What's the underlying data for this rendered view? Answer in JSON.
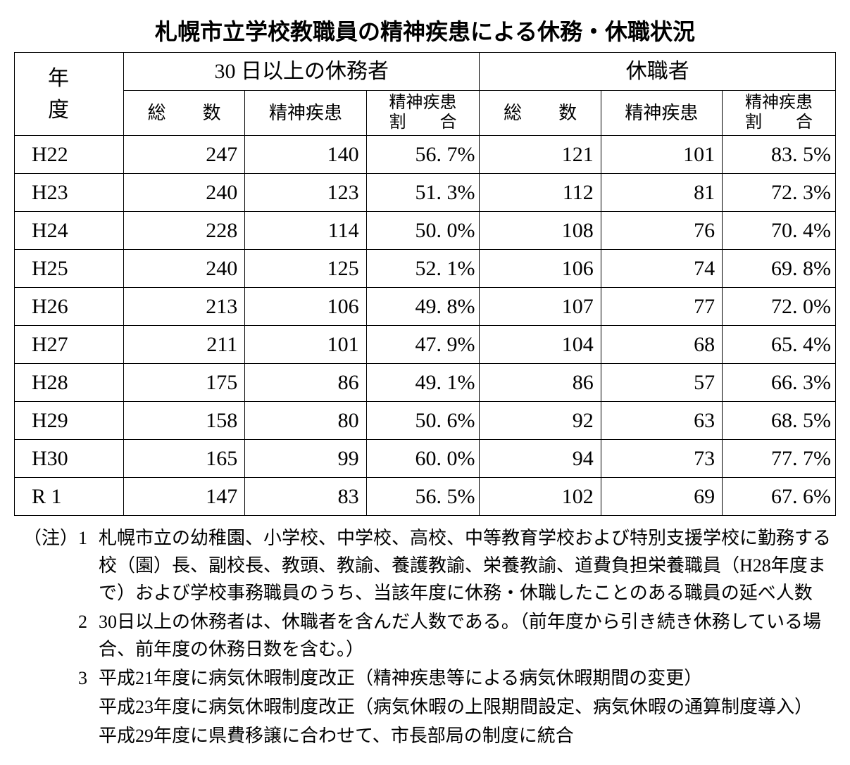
{
  "title": "札幌市立学校教職員の精神疾患による休務・休職状況",
  "headers": {
    "year": "年　度",
    "group1": "30 日以上の休務者",
    "group2": "休職者",
    "sub_total": "総　　数",
    "sub_mental": "精神疾患",
    "sub_ratio_line1": "精神疾患",
    "sub_ratio_line2": "割　　合"
  },
  "rows": [
    {
      "year": "H22",
      "t1": "247",
      "m1": "140",
      "p1": "56. 7%",
      "t2": "121",
      "m2": "101",
      "p2": "83. 5%"
    },
    {
      "year": "H23",
      "t1": "240",
      "m1": "123",
      "p1": "51. 3%",
      "t2": "112",
      "m2": "81",
      "p2": "72. 3%"
    },
    {
      "year": "H24",
      "t1": "228",
      "m1": "114",
      "p1": "50. 0%",
      "t2": "108",
      "m2": "76",
      "p2": "70. 4%"
    },
    {
      "year": "H25",
      "t1": "240",
      "m1": "125",
      "p1": "52. 1%",
      "t2": "106",
      "m2": "74",
      "p2": "69. 8%"
    },
    {
      "year": "H26",
      "t1": "213",
      "m1": "106",
      "p1": "49. 8%",
      "t2": "107",
      "m2": "77",
      "p2": "72. 0%"
    },
    {
      "year": "H27",
      "t1": "211",
      "m1": "101",
      "p1": "47. 9%",
      "t2": "104",
      "m2": "68",
      "p2": "65. 4%"
    },
    {
      "year": "H28",
      "t1": "175",
      "m1": "86",
      "p1": "49. 1%",
      "t2": "86",
      "m2": "57",
      "p2": "66. 3%"
    },
    {
      "year": "H29",
      "t1": "158",
      "m1": "80",
      "p1": "50. 6%",
      "t2": "92",
      "m2": "63",
      "p2": "68. 5%"
    },
    {
      "year": "H30",
      "t1": "165",
      "m1": "99",
      "p1": "60. 0%",
      "t2": "94",
      "m2": "73",
      "p2": "77. 7%"
    },
    {
      "year": "R 1",
      "t1": "147",
      "m1": "83",
      "p1": "56. 5%",
      "t2": "102",
      "m2": "69",
      "p2": "67. 6%"
    }
  ],
  "notes": [
    {
      "label": "（注）1",
      "text": "札幌市立の幼稚園、小学校、中学校、高校、中等教育学校および特別支援学校に勤務する校（園）長、副校長、教頭、教諭、養護教諭、栄養教諭、道費負担栄養職員（H28年度まで）および学校事務職員のうち、当該年度に休務・休職したことのある職員の延べ人数"
    },
    {
      "label": "2",
      "text": "30日以上の休務者は、休職者を含んだ人数である。（前年度から引き続き休務している場合、前年度の休務日数を含む。）"
    },
    {
      "label": "3",
      "text": "平成21年度に病気休暇制度改正（精神疾患等による病気休暇期間の変更）"
    },
    {
      "label": "",
      "text": "平成23年度に病気休暇制度改正（病気休暇の上限期間設定、病気休暇の通算制度導入）"
    },
    {
      "label": "",
      "text": "平成29年度に県費移譲に合わせて、市長部局の制度に統合"
    }
  ],
  "table_style": {
    "border_color": "#000000",
    "background_color": "#ffffff",
    "title_fontsize": 32,
    "header_fontsize": 30,
    "subheader_fontsize": 26,
    "small_header_fontsize": 24,
    "cell_fontsize": 30,
    "notes_fontsize": 26,
    "col_widths": {
      "year": 155,
      "total": 175,
      "mental": 175,
      "ratio": 165
    }
  }
}
